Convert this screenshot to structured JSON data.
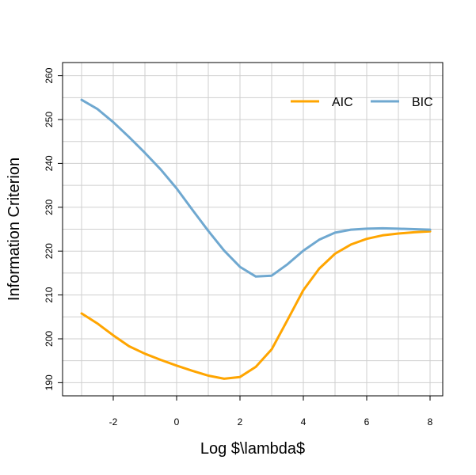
{
  "chart_data": {
    "type": "line",
    "title": "",
    "xlabel": "Log $\\lambda$",
    "ylabel": "Information Criterion",
    "xlim": [
      -3.6,
      8.4
    ],
    "ylim": [
      187,
      263
    ],
    "x_ticks": [
      -2,
      0,
      2,
      4,
      6,
      8
    ],
    "y_ticks": [
      190,
      200,
      210,
      220,
      230,
      240,
      250,
      260
    ],
    "x_tick_labels": [
      "-2",
      "0",
      "2",
      "4",
      "6",
      "8"
    ],
    "y_tick_labels": [
      "190",
      "200",
      "210",
      "220",
      "230",
      "240",
      "250",
      "260"
    ],
    "grid": true,
    "legend_position": "top-right",
    "series": [
      {
        "name": "AIC",
        "color": "#FFA500",
        "points": [
          [
            -3.0,
            205.8
          ],
          [
            -2.5,
            203.5
          ],
          [
            -2.0,
            200.8
          ],
          [
            -1.5,
            198.3
          ],
          [
            -1.0,
            196.6
          ],
          [
            -0.5,
            195.2
          ],
          [
            0.0,
            193.9
          ],
          [
            0.5,
            192.7
          ],
          [
            1.0,
            191.6
          ],
          [
            1.5,
            190.9
          ],
          [
            2.0,
            191.3
          ],
          [
            2.5,
            193.6
          ],
          [
            3.0,
            197.6
          ],
          [
            3.5,
            204.3
          ],
          [
            4.0,
            211.1
          ],
          [
            4.5,
            216.0
          ],
          [
            5.0,
            219.4
          ],
          [
            5.5,
            221.5
          ],
          [
            6.0,
            222.8
          ],
          [
            6.5,
            223.6
          ],
          [
            7.0,
            224.0
          ],
          [
            7.5,
            224.3
          ],
          [
            8.0,
            224.5
          ]
        ]
      },
      {
        "name": "BIC",
        "color": "#6FA8D0",
        "points": [
          [
            -3.0,
            254.5
          ],
          [
            -2.5,
            252.4
          ],
          [
            -2.0,
            249.4
          ],
          [
            -1.5,
            246.0
          ],
          [
            -1.0,
            242.4
          ],
          [
            -0.5,
            238.6
          ],
          [
            0.0,
            234.3
          ],
          [
            0.5,
            229.4
          ],
          [
            1.0,
            224.6
          ],
          [
            1.5,
            220.1
          ],
          [
            2.0,
            216.4
          ],
          [
            2.5,
            214.2
          ],
          [
            3.0,
            214.4
          ],
          [
            3.5,
            217.0
          ],
          [
            4.0,
            220.1
          ],
          [
            4.5,
            222.6
          ],
          [
            5.0,
            224.2
          ],
          [
            5.5,
            224.9
          ],
          [
            6.0,
            225.1
          ],
          [
            6.5,
            225.2
          ],
          [
            7.0,
            225.1
          ],
          [
            7.5,
            225.0
          ],
          [
            8.0,
            224.9
          ]
        ]
      }
    ]
  }
}
